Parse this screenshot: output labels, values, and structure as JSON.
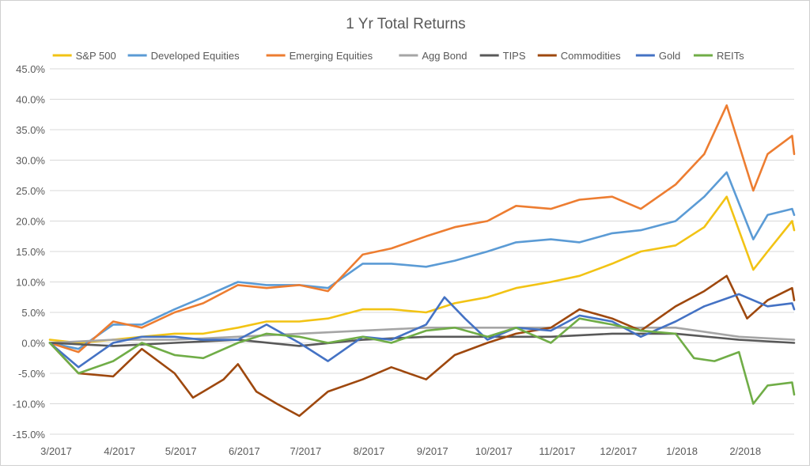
{
  "chart_data": {
    "type": "line",
    "title": "1 Yr Total Returns",
    "xlabel": "",
    "ylabel": "",
    "ylim": [
      -15,
      45
    ],
    "yticks": [
      -15,
      -10,
      -5,
      0,
      5,
      10,
      15,
      20,
      25,
      30,
      35,
      40,
      45
    ],
    "ytick_labels": [
      "-15.0%",
      "-10.0%",
      "-5.0%",
      "0.0%",
      "5.0%",
      "10.0%",
      "15.0%",
      "20.0%",
      "25.0%",
      "30.0%",
      "35.0%",
      "40.0%",
      "45.0%"
    ],
    "x_range": [
      "2017-03-01",
      "2018-02-28"
    ],
    "xticks": [
      "2017-03-01",
      "2017-04-01",
      "2017-05-01",
      "2017-06-01",
      "2017-07-01",
      "2017-08-01",
      "2017-09-01",
      "2017-10-01",
      "2017-11-01",
      "2017-12-01",
      "2018-01-01",
      "2018-02-01"
    ],
    "xtick_labels": [
      "3/2017",
      "4/2017",
      "5/2017",
      "6/2017",
      "7/2017",
      "8/2017",
      "9/2017",
      "10/2017",
      "11/2017",
      "12/2017",
      "1/2018",
      "2/2018"
    ],
    "grid": true,
    "legend": "top",
    "series": [
      {
        "name": "S&P 500",
        "color": "#F2C314",
        "x": [
          "2017-03-01",
          "2017-03-15",
          "2017-04-01",
          "2017-04-15",
          "2017-05-01",
          "2017-05-15",
          "2017-06-01",
          "2017-06-15",
          "2017-07-01",
          "2017-07-15",
          "2017-08-01",
          "2017-08-15",
          "2017-09-01",
          "2017-09-15",
          "2017-10-01",
          "2017-10-15",
          "2017-11-01",
          "2017-11-15",
          "2017-12-01",
          "2017-12-15",
          "2018-01-01",
          "2018-01-15",
          "2018-01-26",
          "2018-02-08",
          "2018-02-15",
          "2018-02-27",
          "2018-02-28"
        ],
        "y": [
          0.5,
          0.0,
          0.5,
          1.0,
          1.5,
          1.5,
          2.5,
          3.5,
          3.5,
          4.0,
          5.5,
          5.5,
          5.0,
          6.5,
          7.5,
          9.0,
          10.0,
          11.0,
          13.0,
          15.0,
          16.0,
          19.0,
          24.0,
          12.0,
          15.0,
          20.0,
          18.5
        ]
      },
      {
        "name": "Developed Equities",
        "color": "#5B9BD5",
        "x": [
          "2017-03-01",
          "2017-03-15",
          "2017-04-01",
          "2017-04-15",
          "2017-05-01",
          "2017-05-15",
          "2017-06-01",
          "2017-06-15",
          "2017-07-01",
          "2017-07-15",
          "2017-08-01",
          "2017-08-15",
          "2017-09-01",
          "2017-09-15",
          "2017-10-01",
          "2017-10-15",
          "2017-11-01",
          "2017-11-15",
          "2017-12-01",
          "2017-12-15",
          "2018-01-01",
          "2018-01-15",
          "2018-01-26",
          "2018-02-08",
          "2018-02-15",
          "2018-02-27",
          "2018-02-28"
        ],
        "y": [
          0.0,
          -1.0,
          3.0,
          3.0,
          5.5,
          7.5,
          10.0,
          9.5,
          9.5,
          9.0,
          13.0,
          13.0,
          12.5,
          13.5,
          15.0,
          16.5,
          17.0,
          16.5,
          18.0,
          18.5,
          20.0,
          24.0,
          28.0,
          17.0,
          21.0,
          22.0,
          21.0
        ]
      },
      {
        "name": "Emerging Equities",
        "color": "#ED7D31",
        "x": [
          "2017-03-01",
          "2017-03-15",
          "2017-04-01",
          "2017-04-15",
          "2017-05-01",
          "2017-05-15",
          "2017-06-01",
          "2017-06-15",
          "2017-07-01",
          "2017-07-15",
          "2017-08-01",
          "2017-08-15",
          "2017-09-01",
          "2017-09-15",
          "2017-10-01",
          "2017-10-15",
          "2017-11-01",
          "2017-11-15",
          "2017-12-01",
          "2017-12-15",
          "2018-01-01",
          "2018-01-15",
          "2018-01-26",
          "2018-02-08",
          "2018-02-15",
          "2018-02-27",
          "2018-02-28"
        ],
        "y": [
          0.0,
          -1.5,
          3.5,
          2.5,
          5.0,
          6.5,
          9.5,
          9.0,
          9.5,
          8.5,
          14.5,
          15.5,
          17.5,
          19.0,
          20.0,
          22.5,
          22.0,
          23.5,
          24.0,
          22.0,
          26.0,
          31.0,
          39.0,
          25.0,
          31.0,
          34.0,
          31.0
        ]
      },
      {
        "name": "Agg Bond",
        "color": "#A5A5A5",
        "x": [
          "2017-03-01",
          "2017-04-01",
          "2017-05-01",
          "2017-06-01",
          "2017-07-01",
          "2017-08-01",
          "2017-09-01",
          "2017-10-01",
          "2017-11-01",
          "2017-12-01",
          "2018-01-01",
          "2018-02-01",
          "2018-02-28"
        ],
        "y": [
          0.0,
          0.5,
          0.5,
          1.0,
          1.5,
          2.0,
          2.5,
          2.5,
          2.5,
          2.5,
          2.5,
          1.0,
          0.5
        ]
      },
      {
        "name": "TIPS",
        "color": "#595959",
        "x": [
          "2017-03-01",
          "2017-04-01",
          "2017-05-01",
          "2017-06-01",
          "2017-07-01",
          "2017-08-01",
          "2017-09-01",
          "2017-10-01",
          "2017-11-01",
          "2017-12-01",
          "2018-01-01",
          "2018-02-01",
          "2018-02-28"
        ],
        "y": [
          0.0,
          -0.5,
          0.0,
          0.5,
          -0.5,
          0.5,
          1.0,
          1.0,
          1.0,
          1.5,
          1.5,
          0.5,
          0.0
        ]
      },
      {
        "name": "Commodities",
        "color": "#9E480E",
        "x": [
          "2017-03-01",
          "2017-03-15",
          "2017-04-01",
          "2017-04-15",
          "2017-05-01",
          "2017-05-10",
          "2017-05-25",
          "2017-06-01",
          "2017-06-10",
          "2017-06-20",
          "2017-07-01",
          "2017-07-15",
          "2017-08-01",
          "2017-08-15",
          "2017-09-01",
          "2017-09-15",
          "2017-10-01",
          "2017-10-15",
          "2017-11-01",
          "2017-11-15",
          "2017-12-01",
          "2017-12-15",
          "2018-01-01",
          "2018-01-15",
          "2018-01-26",
          "2018-02-05",
          "2018-02-15",
          "2018-02-27",
          "2018-02-28"
        ],
        "y": [
          0.0,
          -5.0,
          -5.5,
          -1.0,
          -5.0,
          -9.0,
          -6.0,
          -3.5,
          -8.0,
          -10.0,
          -12.0,
          -8.0,
          -6.0,
          -4.0,
          -6.0,
          -2.0,
          0.0,
          1.5,
          2.5,
          5.5,
          4.0,
          2.0,
          6.0,
          8.5,
          11.0,
          4.0,
          7.0,
          9.0,
          7.0
        ]
      },
      {
        "name": "Gold",
        "color": "#4472C4",
        "x": [
          "2017-03-01",
          "2017-03-15",
          "2017-04-01",
          "2017-04-15",
          "2017-05-01",
          "2017-05-15",
          "2017-06-01",
          "2017-06-15",
          "2017-07-01",
          "2017-07-15",
          "2017-08-01",
          "2017-08-15",
          "2017-09-01",
          "2017-09-10",
          "2017-09-20",
          "2017-10-01",
          "2017-10-15",
          "2017-11-01",
          "2017-11-15",
          "2017-12-01",
          "2017-12-15",
          "2018-01-01",
          "2018-01-15",
          "2018-02-01",
          "2018-02-15",
          "2018-02-27",
          "2018-02-28"
        ],
        "y": [
          0.0,
          -4.0,
          0.0,
          1.0,
          1.0,
          0.5,
          0.5,
          3.0,
          0.0,
          -3.0,
          1.0,
          0.5,
          3.0,
          7.5,
          4.0,
          0.5,
          2.5,
          2.0,
          4.5,
          3.5,
          1.0,
          3.5,
          6.0,
          8.0,
          6.0,
          6.5,
          5.5
        ]
      },
      {
        "name": "REITs",
        "color": "#70AD47",
        "x": [
          "2017-03-01",
          "2017-03-15",
          "2017-04-01",
          "2017-04-15",
          "2017-05-01",
          "2017-05-15",
          "2017-06-01",
          "2017-06-15",
          "2017-07-01",
          "2017-07-15",
          "2017-08-01",
          "2017-08-15",
          "2017-09-01",
          "2017-09-15",
          "2017-10-01",
          "2017-10-15",
          "2017-11-01",
          "2017-11-15",
          "2017-12-01",
          "2017-12-15",
          "2018-01-01",
          "2018-01-10",
          "2018-01-20",
          "2018-02-01",
          "2018-02-08",
          "2018-02-15",
          "2018-02-27",
          "2018-02-28"
        ],
        "y": [
          0.0,
          -5.0,
          -3.0,
          0.0,
          -2.0,
          -2.5,
          0.0,
          1.5,
          1.0,
          0.0,
          1.0,
          0.0,
          2.0,
          2.5,
          1.0,
          2.5,
          0.0,
          4.0,
          3.0,
          2.0,
          1.5,
          -2.5,
          -3.0,
          -1.5,
          -10.0,
          -7.0,
          -6.5,
          -8.5
        ]
      }
    ]
  }
}
